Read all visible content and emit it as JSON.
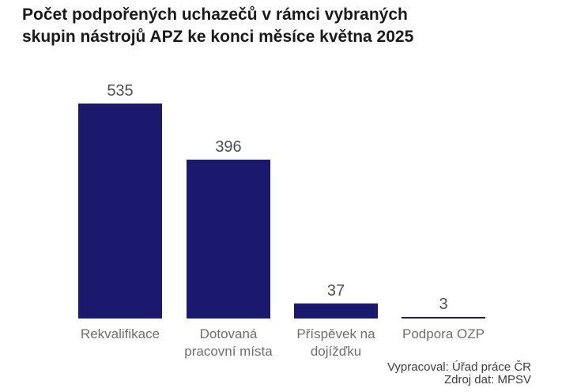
{
  "page": {
    "background_color": "#ffffff"
  },
  "title": {
    "line1": "Počet podpořených uchazečů v rámci vybraných",
    "line2": "skupin nástrojů APZ ke konci měsíce května 2025",
    "color": "#1a1a1a"
  },
  "chart_data": {
    "type": "bar",
    "categories": [
      "Rekvalifikace",
      "Dotovaná pracovní místa",
      "Příspěvek na dojížďku",
      "Podpora OZP"
    ],
    "values": [
      535,
      396,
      37,
      3
    ],
    "title": "Počet podpořených uchazečů v rámci vybraných skupin nástrojů APZ ke konci měsíce května 2025",
    "xlabel": "",
    "ylabel": "",
    "ylim": [
      0,
      535
    ],
    "grid": false,
    "legend": false,
    "data_labels_shown": true,
    "bar_color": "#1A196D",
    "value_label_color": "#4f4f4f",
    "category_label_color": "#6e6e6e"
  },
  "footer": {
    "line1": "Vypracoval: Úřad práce ČR",
    "line2": "Zdroj dat: MPSV",
    "color": "#3d3d3d"
  }
}
